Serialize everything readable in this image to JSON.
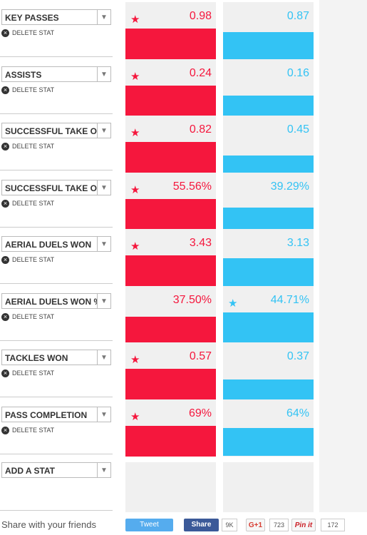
{
  "stats": [
    {
      "label": "KEY PASSES",
      "delete": "DELETE STAT",
      "values": [
        0.98,
        0.87
      ]
    },
    {
      "label": "ASSISTS",
      "delete": "DELETE STAT",
      "values": [
        0.24,
        0.16
      ]
    },
    {
      "label": "SUCCESSFUL TAKE O",
      "delete": "DELETE STAT",
      "values": [
        0.82,
        0.45
      ]
    },
    {
      "label": "SUCCESSFUL TAKE O",
      "delete": "DELETE STAT",
      "values": [
        55.56,
        39.29
      ],
      "value_labels": [
        "55.56%",
        "39.29%"
      ]
    },
    {
      "label": "AERIAL DUELS WON",
      "delete": "DELETE STAT",
      "values": [
        3.43,
        3.13
      ]
    },
    {
      "label": "AERIAL DUELS WON %",
      "delete": "DELETE STAT",
      "values": [
        37.5,
        44.71
      ],
      "value_labels": [
        "37.50%",
        "44.71%"
      ]
    },
    {
      "label": "TACKLES WON",
      "delete": "DELETE STAT",
      "values": [
        0.57,
        0.37
      ]
    },
    {
      "label": "PASS COMPLETION",
      "delete": "DELETE STAT",
      "values": [
        69,
        64
      ],
      "value_labels": [
        "69%",
        "64%"
      ]
    }
  ],
  "colors": [
    "#f5173d",
    "#33c3f4"
  ],
  "add_stat": "ADD A STAT",
  "footer": {
    "share_text": "Share with your friends",
    "tweet": "Tweet",
    "fb_share": "Share",
    "fb_count": "9K",
    "gplus": "G+1",
    "gplus_count": 723,
    "pinit": "Pin it",
    "pin_count": 172
  }
}
